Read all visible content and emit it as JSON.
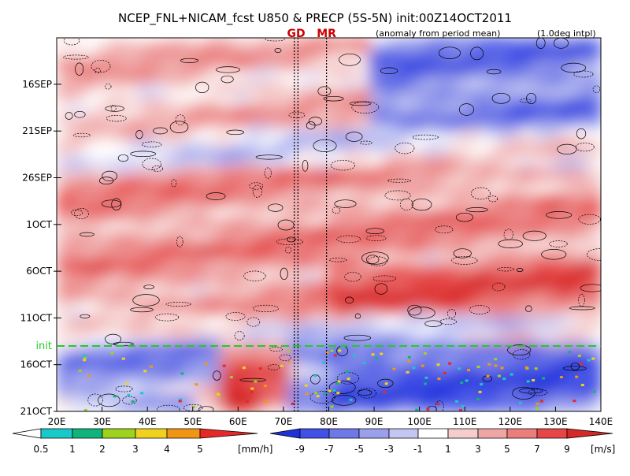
{
  "chart_data": {
    "type": "heatmap",
    "title": "NCEP_FNL+NICAM_fcst U850 & PRECP (5S-5N) init:00Z14OCT2011",
    "subtitle_left": "(anomaly from period mean)",
    "subtitle_right": "(1.0deg intpl)",
    "x_ticks": [
      "20E",
      "30E",
      "40E",
      "50E",
      "60E",
      "70E",
      "80E",
      "90E",
      "100E",
      "110E",
      "120E",
      "130E",
      "140E"
    ],
    "x_values": [
      20,
      30,
      40,
      50,
      60,
      70,
      80,
      90,
      100,
      110,
      120,
      130,
      140
    ],
    "xlim": [
      20,
      140
    ],
    "y_ticks": [
      "16SEP",
      "21SEP",
      "26SEP",
      "1OCT",
      "6OCT",
      "11OCT",
      "16OCT",
      "21OCT"
    ],
    "y_values": [
      15.67,
      20.67,
      25.67,
      30.67,
      35.67,
      40.67,
      45.67,
      50.67
    ],
    "ylim": [
      10.7,
      50.67
    ],
    "init_label": "init",
    "init_day": 43.67,
    "site_markers": [
      {
        "label": "GD",
        "lon": 72.8
      },
      {
        "label": "MR",
        "lon": 79.5
      }
    ],
    "marker_line_lons": [
      72.4,
      73.2,
      79.5
    ],
    "precip_colorbar": {
      "labels": [
        "0.5",
        "1",
        "2",
        "3",
        "4",
        "5"
      ],
      "unit": "[mm/h]",
      "colors": [
        "#19c8c8",
        "#10b47a",
        "#9ed21c",
        "#f0d21e",
        "#f09614",
        "#e62828"
      ]
    },
    "wind_colorbar": {
      "labels": [
        "-9",
        "-7",
        "-5",
        "-3",
        "-1",
        "1",
        "3",
        "5",
        "7",
        "9"
      ],
      "unit": "[m/s]",
      "colors": [
        "#1e32dc",
        "#4150e6",
        "#6e78e6",
        "#9ba0ec",
        "#c3c6f3",
        "#ffffff",
        "#f5cdcd",
        "#f0a5a5",
        "#eb7d7d",
        "#e64646",
        "#d72828"
      ]
    }
  }
}
